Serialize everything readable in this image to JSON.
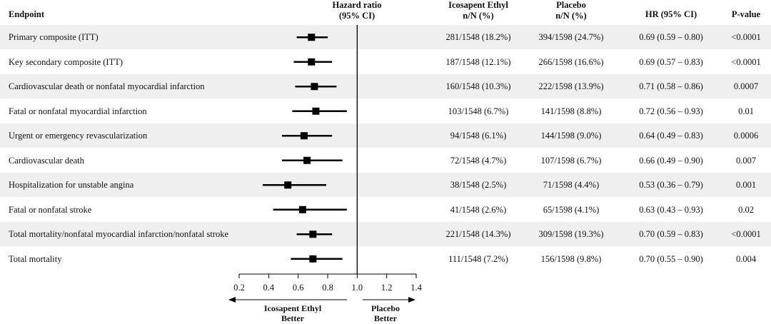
{
  "headers": {
    "endpoint": "Endpoint",
    "hr_plot_1": "Hazard ratio",
    "hr_plot_2": "(95% CI)",
    "ice_1": "Icosapent Ethyl",
    "ice_2": "n/N (%)",
    "pla_1": "Placebo",
    "pla_2": "n/N (%)",
    "hrci": "HR (95% CI)",
    "pval": "P-value"
  },
  "rows": [
    {
      "endpoint": "Primary composite (ITT)",
      "ice": "281/1548 (18.2%)",
      "pla": "394/1598 (24.7%)",
      "hrci": "0.69 (0.59 – 0.80)",
      "p": "<0.0001"
    },
    {
      "endpoint": "Key secondary composite (ITT)",
      "ice": "187/1548 (12.1%)",
      "pla": "266/1598 (16.6%)",
      "hrci": "0.69 (0.57 – 0.83)",
      "p": "<0.0001"
    },
    {
      "endpoint": "Cardiovascular death or nonfatal myocardial infarction",
      "ice": "160/1548 (10.3%)",
      "pla": "222/1598 (13.9%)",
      "hrci": "0.71 (0.58 – 0.86)",
      "p": "0.0007"
    },
    {
      "endpoint": "Fatal or nonfatal myocardial infarction",
      "ice": "103/1548 (6.7%)",
      "pla": "141/1598 (8.8%)",
      "hrci": "0.72 (0.56 – 0.93)",
      "p": "0.01"
    },
    {
      "endpoint": "Urgent or emergency revascularization",
      "ice": "94/1548 (6.1%)",
      "pla": "144/1598 (9.0%)",
      "hrci": "0.64 (0.49 – 0.83)",
      "p": "0.0006"
    },
    {
      "endpoint": "Cardiovascular death",
      "ice": "72/1548 (4.7%)",
      "pla": "107/1598 (6.7%)",
      "hrci": "0.66 (0.49 – 0.90)",
      "p": "0.007"
    },
    {
      "endpoint": "Hospitalization for unstable angina",
      "ice": "38/1548 (2.5%)",
      "pla": "71/1598 (4.4%)",
      "hrci": "0.53 (0.36 – 0.79)",
      "p": "0.001"
    },
    {
      "endpoint": "Fatal or nonfatal stroke",
      "ice": "41/1548 (2.6%)",
      "pla": "65/1598 (4.1%)",
      "hrci": "0.63 (0.43 – 0.93)",
      "p": "0.02"
    },
    {
      "endpoint": "Total mortality/nonfatal myocardial infarction/nonfatal stroke",
      "ice": "221/1548 (14.3%)",
      "pla": "309/1598 (19.3%)",
      "hrci": "0.70 (0.59 – 0.83)",
      "p": "<0.0001"
    },
    {
      "endpoint": "Total mortality",
      "ice": "111/1548 (7.2%)",
      "pla": "156/1598 (9.8%)",
      "hrci": "0.70 (0.55 – 0.90)",
      "p": "0.004"
    }
  ],
  "footer": {
    "left_1": "Icosapent Ethyl",
    "left_2": "Better",
    "right_1": "Placebo",
    "right_2": "Better"
  },
  "chart_data": {
    "type": "forest",
    "xlim": [
      0.2,
      1.4
    ],
    "ticks": [
      "0.2",
      "0.4",
      "0.6",
      "0.8",
      "1.0",
      "1.2",
      "1.4"
    ],
    "tick_values": [
      0.2,
      0.4,
      0.6,
      0.8,
      1.0,
      1.2,
      1.4
    ],
    "reference": 1.0,
    "series": [
      {
        "hr": 0.69,
        "lo": 0.59,
        "hi": 0.8
      },
      {
        "hr": 0.69,
        "lo": 0.57,
        "hi": 0.83
      },
      {
        "hr": 0.71,
        "lo": 0.58,
        "hi": 0.86
      },
      {
        "hr": 0.72,
        "lo": 0.56,
        "hi": 0.93
      },
      {
        "hr": 0.64,
        "lo": 0.49,
        "hi": 0.83
      },
      {
        "hr": 0.66,
        "lo": 0.49,
        "hi": 0.9
      },
      {
        "hr": 0.53,
        "lo": 0.36,
        "hi": 0.79
      },
      {
        "hr": 0.63,
        "lo": 0.43,
        "hi": 0.93
      },
      {
        "hr": 0.7,
        "lo": 0.59,
        "hi": 0.83
      },
      {
        "hr": 0.7,
        "lo": 0.55,
        "hi": 0.9
      }
    ],
    "colors": {
      "marks": "#000000",
      "shade": "#efefef"
    }
  }
}
